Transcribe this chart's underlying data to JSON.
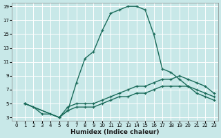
{
  "title": "",
  "xlabel": "Humidex (Indice chaleur)",
  "bg_color": "#c8e8e8",
  "grid_color": "#ffffff",
  "line_color": "#1a6b5a",
  "xlim": [
    -0.5,
    23.5
  ],
  "ylim": [
    2.5,
    19.5
  ],
  "xticks": [
    0,
    1,
    2,
    3,
    4,
    5,
    6,
    7,
    8,
    9,
    10,
    11,
    12,
    13,
    14,
    15,
    16,
    17,
    18,
    19,
    20,
    21,
    22,
    23
  ],
  "yticks": [
    3,
    5,
    7,
    9,
    11,
    13,
    15,
    17,
    19
  ],
  "line1_x": [
    1,
    2,
    3,
    4,
    5,
    6,
    7,
    8,
    9,
    10,
    11,
    12,
    13,
    14,
    15,
    16,
    17,
    18,
    19,
    20,
    21,
    22,
    23
  ],
  "line1_y": [
    5,
    4.5,
    3.5,
    3.5,
    3,
    4,
    8,
    11.5,
    12.5,
    15.5,
    18,
    18.5,
    19,
    19,
    18.5,
    15,
    10,
    9.5,
    8.5,
    7.5,
    6.5,
    6,
    5.5
  ],
  "line2_x": [
    1,
    5,
    6,
    7,
    8,
    9,
    10,
    11,
    12,
    13,
    14,
    15,
    16,
    17,
    18,
    19,
    20,
    21,
    22,
    23
  ],
  "line2_y": [
    5,
    3,
    4.5,
    5,
    5,
    5,
    5.5,
    6,
    6.5,
    7,
    7.5,
    7.5,
    8,
    8.5,
    8.5,
    9,
    8.5,
    8,
    7.5,
    6.5
  ],
  "line3_x": [
    1,
    5,
    6,
    7,
    8,
    9,
    10,
    11,
    12,
    13,
    14,
    15,
    16,
    17,
    18,
    19,
    20,
    21,
    22,
    23
  ],
  "line3_y": [
    5,
    3,
    4,
    4.5,
    4.5,
    4.5,
    5,
    5.5,
    6,
    6,
    6.5,
    6.5,
    7,
    7.5,
    7.5,
    7.5,
    7.5,
    7,
    6.5,
    6
  ]
}
